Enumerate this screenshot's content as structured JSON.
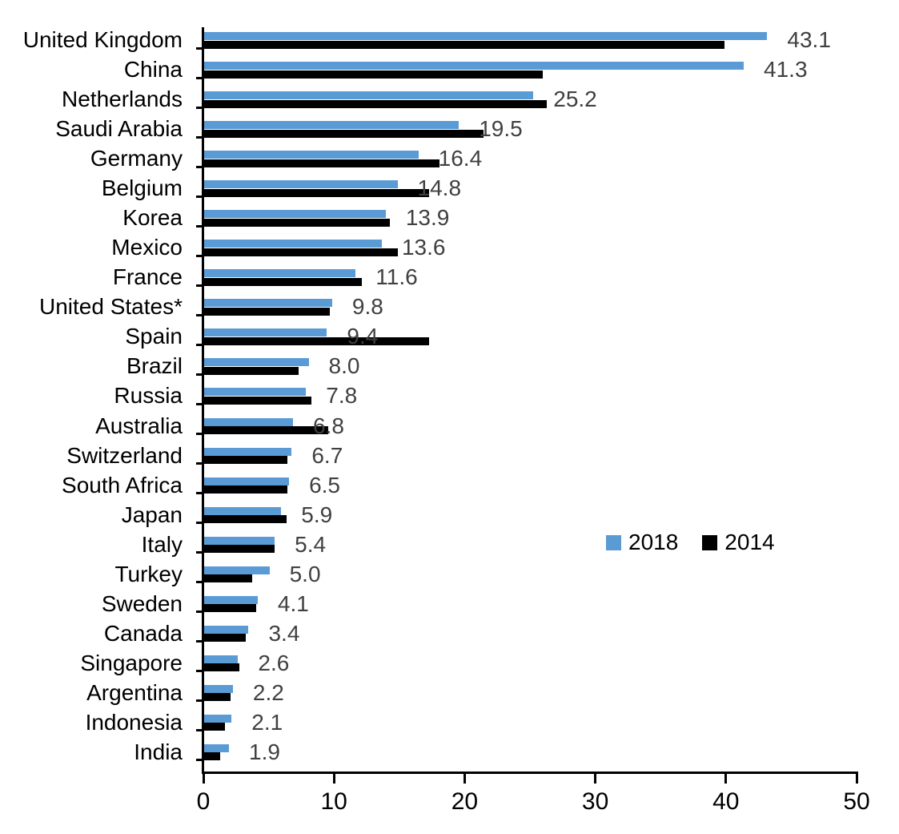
{
  "chart_data": {
    "type": "bar",
    "orientation": "horizontal",
    "title": "",
    "xlabel": "",
    "ylabel": "",
    "xlim": [
      0,
      50
    ],
    "x_ticks": [
      0,
      10,
      20,
      30,
      40,
      50
    ],
    "grid": false,
    "legend_position": "middle-right",
    "label_color": "#404040",
    "categories": [
      "United Kingdom",
      "China",
      "Netherlands",
      "Saudi Arabia",
      "Germany",
      "Belgium",
      "Korea",
      "Mexico",
      "France",
      "United States*",
      "Spain",
      "Brazil",
      "Russia",
      "Australia",
      "Switzerland",
      "South Africa",
      "Japan",
      "Italy",
      "Turkey",
      "Sweden",
      "Canada",
      "Singapore",
      "Argentina",
      "Indonesia",
      "India"
    ],
    "series": [
      {
        "name": "2018",
        "color": "#5B9BD5",
        "data_labels": [
          "43.1",
          "41.3",
          "25.2",
          "19.5",
          "16.4",
          "14.8",
          "13.9",
          "13.6",
          "11.6",
          "9.8",
          "9.4",
          "8.0",
          "7.8",
          "6.8",
          "6.7",
          "6.5",
          "5.9",
          "5.4",
          "5.0",
          "4.1",
          "3.4",
          "2.6",
          "2.2",
          "2.1",
          "1.9"
        ],
        "values": [
          43.1,
          41.3,
          25.2,
          19.5,
          16.4,
          14.8,
          13.9,
          13.6,
          11.6,
          9.8,
          9.4,
          8.0,
          7.8,
          6.8,
          6.7,
          6.5,
          5.9,
          5.4,
          5.0,
          4.1,
          3.4,
          2.6,
          2.2,
          2.1,
          1.9
        ]
      },
      {
        "name": "2014",
        "color": "#000000",
        "values": [
          39.8,
          25.9,
          26.2,
          21.4,
          18.0,
          17.2,
          14.2,
          14.8,
          12.1,
          9.6,
          17.2,
          7.2,
          8.2,
          9.5,
          6.4,
          6.4,
          6.3,
          5.4,
          3.7,
          4.0,
          3.2,
          2.7,
          2.0,
          1.6,
          1.2
        ]
      }
    ]
  }
}
